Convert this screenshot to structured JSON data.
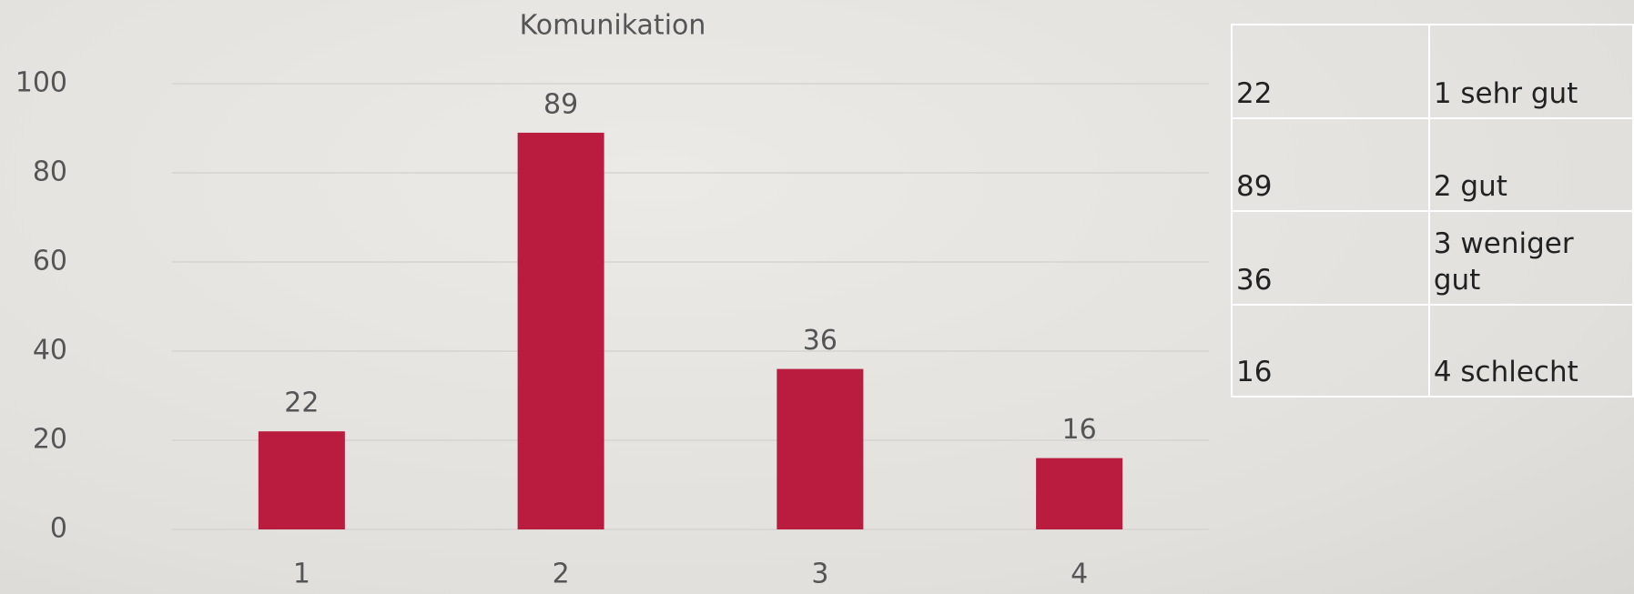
{
  "chart_data": {
    "type": "bar",
    "title": "Komunikation",
    "categories": [
      "1",
      "2",
      "3",
      "4"
    ],
    "values": [
      22,
      89,
      36,
      16
    ],
    "color": "#b91c3f",
    "ylim": [
      0,
      100
    ],
    "yticks": [
      0,
      20,
      40,
      60,
      80,
      100
    ],
    "grid": true
  },
  "table": {
    "rows": [
      [
        "22",
        "1 sehr gut"
      ],
      [
        "89",
        "2 gut"
      ],
      [
        "36",
        "3 weniger gut"
      ],
      [
        "16",
        "4 schlecht"
      ]
    ]
  }
}
